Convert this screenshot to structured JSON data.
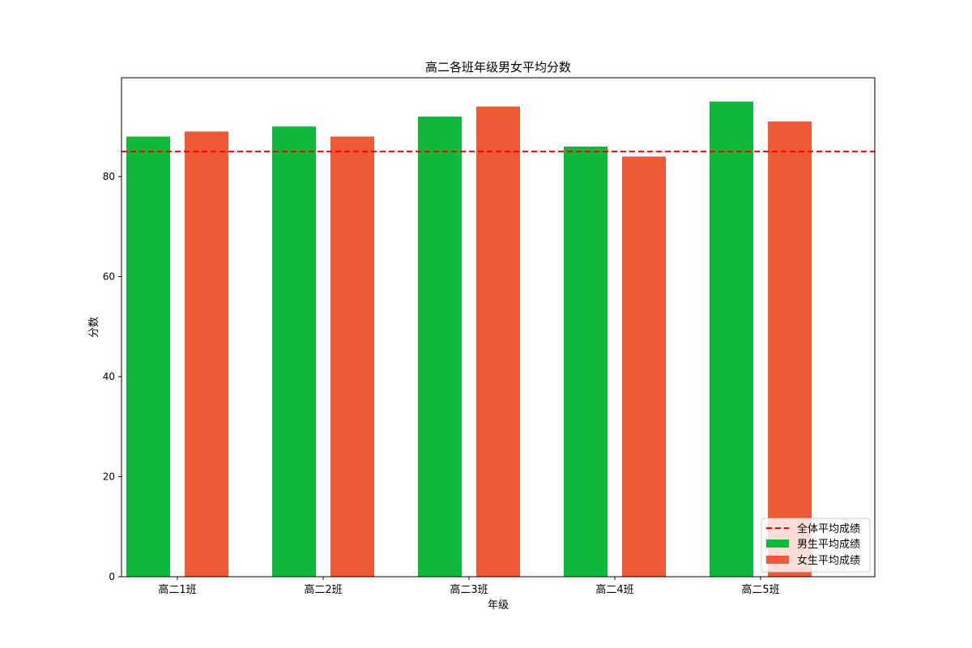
{
  "chart_data": {
    "type": "bar",
    "title": "高二各班年级男女平均分数",
    "xlabel": "年级",
    "ylabel": "分数",
    "categories": [
      "高二1班",
      "高二2班",
      "高二3班",
      "高二4班",
      "高二5班"
    ],
    "series": [
      {
        "name": "男生平均成绩",
        "values": [
          88,
          90,
          92,
          86,
          95
        ],
        "color": "#10b83b"
      },
      {
        "name": "女生平均成绩",
        "values": [
          89,
          88,
          94,
          84,
          91
        ],
        "color": "#ee5936"
      }
    ],
    "reference_line": {
      "name": "全体平均成绩",
      "value": 85,
      "color": "#ff0000",
      "style": "dashed"
    },
    "ylim": [
      0,
      99.75
    ],
    "yticks": [
      0,
      20,
      40,
      60,
      80
    ],
    "legend_position": "lower right",
    "grid": false
  }
}
